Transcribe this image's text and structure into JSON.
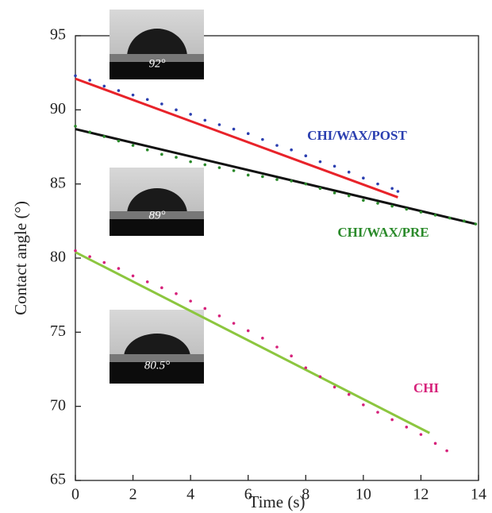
{
  "chart_data": {
    "type": "scatter",
    "x_label": "Time (s)",
    "y_label": "Contact angle (°)",
    "xlim": [
      0,
      14
    ],
    "ylim": [
      65,
      95
    ],
    "xticks": [
      0,
      2,
      4,
      6,
      8,
      10,
      12,
      14
    ],
    "yticks": [
      65,
      70,
      75,
      80,
      85,
      90,
      95
    ],
    "insets": [
      "92°",
      "89°",
      "80.5°"
    ],
    "series": [
      {
        "name": "CHI/WAX/POST",
        "color": "#2b3fb0",
        "x": [
          0,
          0.5,
          1,
          1.5,
          2,
          2.5,
          3,
          3.5,
          4,
          4.5,
          5,
          5.5,
          6,
          6.5,
          7,
          7.5,
          8,
          8.5,
          9,
          9.5,
          10,
          10.5,
          11,
          11.2
        ],
        "values": [
          92.3,
          92.0,
          91.6,
          91.3,
          91.0,
          90.7,
          90.4,
          90.0,
          89.7,
          89.3,
          89.0,
          88.7,
          88.4,
          88.0,
          87.6,
          87.3,
          86.9,
          86.5,
          86.2,
          85.8,
          85.4,
          85.0,
          84.7,
          84.5
        ],
        "fit": {
          "color": "#e8232a",
          "x": [
            0,
            11.2
          ],
          "values": [
            92.1,
            84.1
          ]
        }
      },
      {
        "name": "CHI/WAX/PRE",
        "color": "#2a8a2a",
        "x": [
          0,
          0.5,
          1,
          1.5,
          2,
          2.5,
          3,
          3.5,
          4,
          4.5,
          5,
          5.5,
          6,
          6.5,
          7,
          7.5,
          8,
          8.5,
          9,
          9.5,
          10,
          10.5,
          11,
          11.5,
          12,
          12.5,
          13,
          13.5,
          13.9
        ],
        "values": [
          88.9,
          88.5,
          88.2,
          87.9,
          87.6,
          87.3,
          87.0,
          86.8,
          86.5,
          86.3,
          86.1,
          85.9,
          85.6,
          85.5,
          85.3,
          85.2,
          85.0,
          84.7,
          84.4,
          84.2,
          83.9,
          83.7,
          83.5,
          83.3,
          83.1,
          82.9,
          82.7,
          82.5,
          82.3
        ],
        "fit": {
          "color": "#111111",
          "x": [
            0,
            13.9
          ],
          "values": [
            88.7,
            82.3
          ]
        }
      },
      {
        "name": "CHI",
        "color": "#d6217a",
        "x": [
          0,
          0.5,
          1,
          1.5,
          2,
          2.5,
          3,
          3.5,
          4,
          4.5,
          5,
          5.5,
          6,
          6.5,
          7,
          7.5,
          8,
          8.5,
          9,
          9.5,
          10,
          10.5,
          11,
          11.5,
          12,
          12.5,
          12.9
        ],
        "values": [
          80.5,
          80.1,
          79.7,
          79.3,
          78.8,
          78.4,
          78.0,
          77.6,
          77.1,
          76.6,
          76.1,
          75.6,
          75.1,
          74.6,
          74.0,
          73.4,
          72.6,
          72.0,
          71.3,
          70.8,
          70.1,
          69.6,
          69.1,
          68.6,
          68.1,
          67.5,
          67.0
        ],
        "fit": {
          "color": "#8cc63f",
          "x": [
            0,
            12.3
          ],
          "values": [
            80.4,
            68.2
          ]
        }
      }
    ]
  }
}
